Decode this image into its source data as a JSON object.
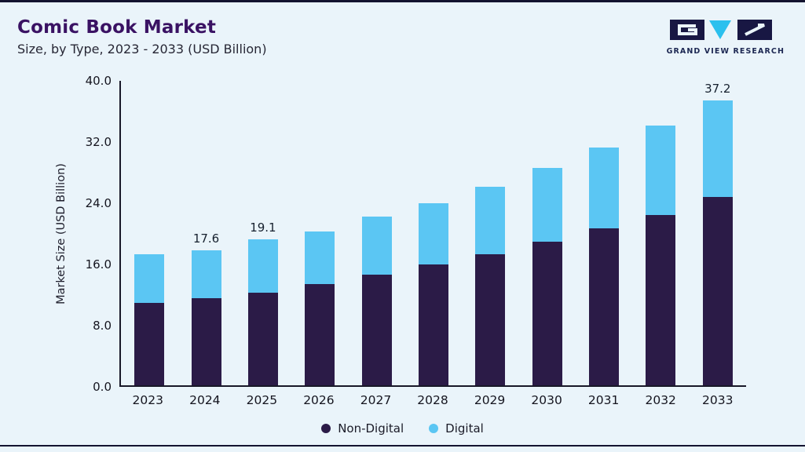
{
  "header": {
    "title": "Comic Book Market",
    "subtitle": "Size, by Type, 2023 - 2033 (USD Billion)"
  },
  "logo": {
    "text": "GRAND VIEW RESEARCH",
    "dark_color": "#181743",
    "cyan_color": "#2bc0ee"
  },
  "chart_data": {
    "type": "bar",
    "stacked": true,
    "title": "Comic Book Market Size, by Type, 2023 - 2033 (USD Billion)",
    "xlabel": "",
    "ylabel": "Market Size (USD Billion)",
    "ylim": [
      0,
      40
    ],
    "yticks": [
      0,
      8,
      16,
      24,
      32,
      40
    ],
    "ytick_labels": [
      "0.0",
      "8.0",
      "16.0",
      "24.0",
      "32.0",
      "40.0"
    ],
    "grid": false,
    "legend_position": "bottom",
    "categories": [
      "2023",
      "2024",
      "2025",
      "2026",
      "2027",
      "2028",
      "2029",
      "2030",
      "2031",
      "2032",
      "2033"
    ],
    "series": [
      {
        "name": "Non-Digital",
        "color": "#2b1b47",
        "values": [
          10.8,
          11.4,
          12.1,
          13.2,
          14.5,
          15.8,
          17.1,
          18.8,
          20.5,
          22.3,
          24.6
        ]
      },
      {
        "name": "Digital",
        "color": "#5bc6f3",
        "values": [
          6.3,
          6.2,
          7.0,
          6.9,
          7.6,
          8.0,
          8.9,
          9.6,
          10.6,
          11.7,
          12.6
        ]
      }
    ],
    "totals": [
      17.1,
      17.6,
      19.1,
      20.1,
      22.1,
      23.8,
      26.0,
      28.4,
      31.1,
      34.0,
      37.2
    ],
    "bar_labels": [
      "",
      "17.6",
      "19.1",
      "",
      "",
      "",
      "",
      "",
      "",
      "",
      "37.2"
    ]
  },
  "legend": {
    "items": [
      {
        "label": "Non-Digital",
        "color": "#2b1b47"
      },
      {
        "label": "Digital",
        "color": "#5bc6f3"
      }
    ]
  }
}
